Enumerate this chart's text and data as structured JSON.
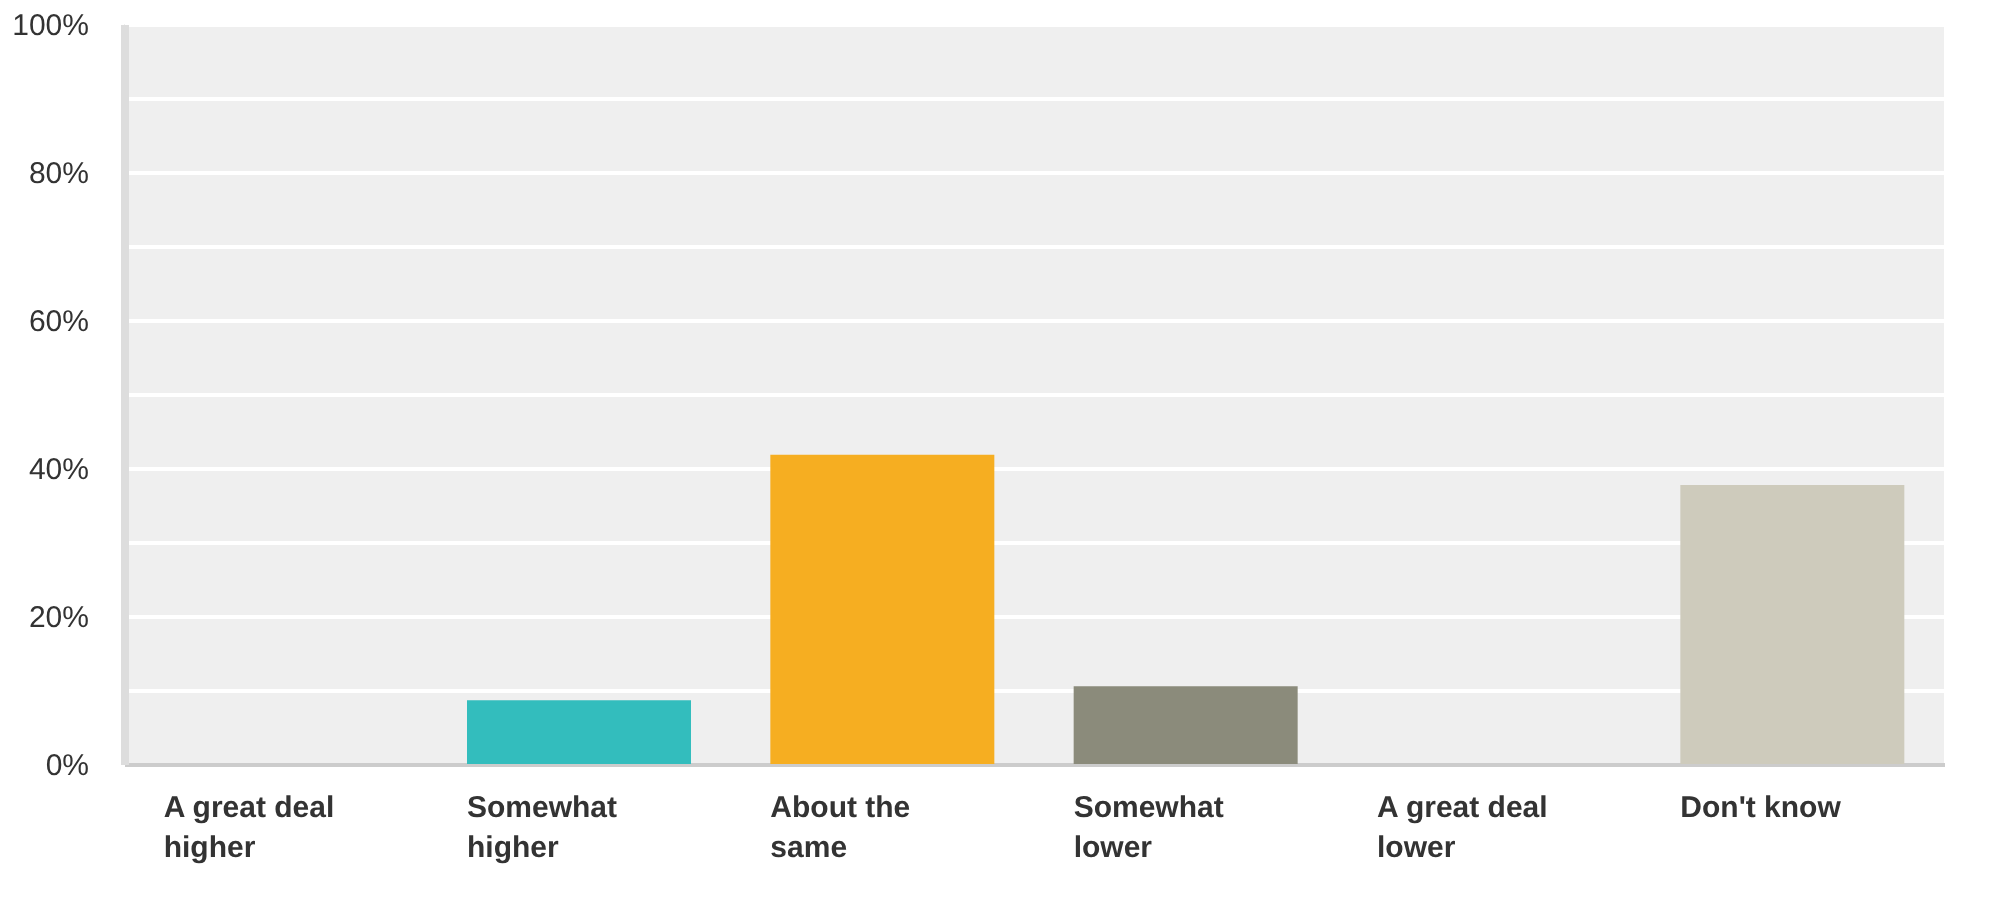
{
  "chart_data": {
    "type": "bar",
    "categories": [
      "A great deal higher",
      "Somewhat higher",
      "About the same",
      "Somewhat lower",
      "A great deal lower",
      "Don't know"
    ],
    "values": [
      0,
      8.6,
      41.8,
      10.5,
      0,
      37.7
    ],
    "colors": [
      "#4ab5d6",
      "#33bdbd",
      "#f6ae21",
      "#8b8b7b",
      "#6f6f6f",
      "#cecbbc"
    ],
    "ylim": [
      0,
      100
    ],
    "yticks": [
      {
        "value": 0,
        "label": "0%"
      },
      {
        "value": 10,
        "label": null
      },
      {
        "value": 20,
        "label": "20%"
      },
      {
        "value": 30,
        "label": null
      },
      {
        "value": 40,
        "label": "40%"
      },
      {
        "value": 50,
        "label": null
      },
      {
        "value": 60,
        "label": "60%"
      },
      {
        "value": 70,
        "label": null
      },
      {
        "value": 80,
        "label": "80%"
      },
      {
        "value": 90,
        "label": null
      },
      {
        "value": 100,
        "label": "100%"
      }
    ],
    "grid": "y"
  }
}
